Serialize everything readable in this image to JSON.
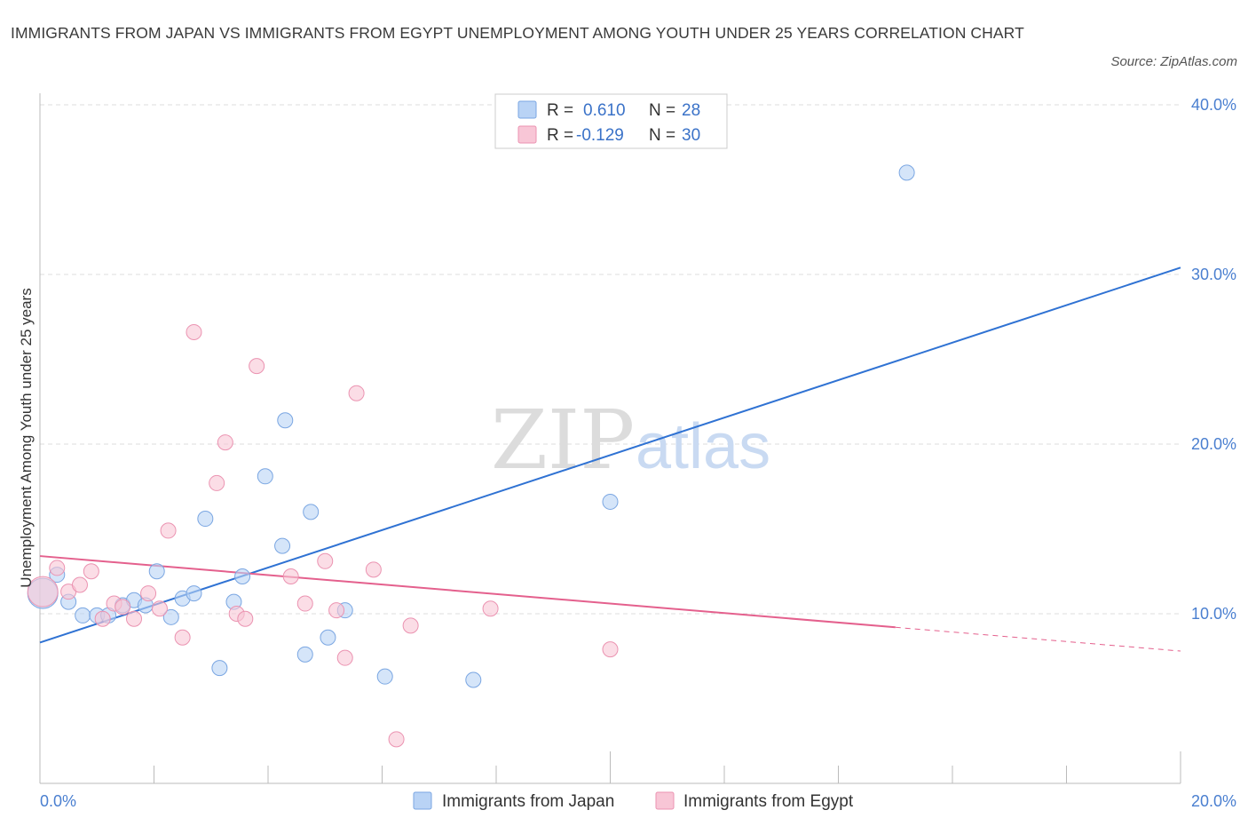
{
  "title": "IMMIGRANTS FROM JAPAN VS IMMIGRANTS FROM EGYPT UNEMPLOYMENT AMONG YOUTH UNDER 25 YEARS CORRELATION CHART",
  "source": "Source: ZipAtlas.com",
  "colors": {
    "japan_fill": "#b9d3f5",
    "japan_stroke": "#7aa6e2",
    "japan_line": "#2f72d3",
    "egypt_fill": "#f8c6d6",
    "egypt_stroke": "#eb93b1",
    "egypt_line": "#e4608d",
    "grid": "#dddddd",
    "axis_label": "#4a7fd0"
  },
  "legend": {
    "r_label": "R =",
    "n_label": "N =",
    "japan": {
      "r": "0.610",
      "n": "28"
    },
    "egypt": {
      "r": "-0.129",
      "n": "30"
    }
  },
  "watermark": {
    "zip": "ZIP",
    "atlas": "atlas"
  },
  "chart_data": {
    "type": "scatter",
    "title": "IMMIGRANTS FROM JAPAN VS IMMIGRANTS FROM EGYPT UNEMPLOYMENT AMONG YOUTH UNDER 25 YEARS CORRELATION CHART",
    "xlabel": "",
    "ylabel": "Unemployment Among Youth under 25 years",
    "xlim": [
      0,
      20
    ],
    "ylim": [
      0,
      40
    ],
    "x_tick_labels": [
      "0.0%",
      "20.0%"
    ],
    "y_tick_labels": [
      "10.0%",
      "20.0%",
      "30.0%",
      "40.0%"
    ],
    "y_ticks": [
      10,
      20,
      30,
      40
    ],
    "grid": true,
    "legend_position": "bottom-center",
    "series": [
      {
        "name": "Immigrants from Japan",
        "r": 0.61,
        "n": 28,
        "points": [
          {
            "x": 0.05,
            "y": 11.2,
            "big": true
          },
          {
            "x": 0.3,
            "y": 12.3
          },
          {
            "x": 0.5,
            "y": 10.7
          },
          {
            "x": 0.75,
            "y": 9.9
          },
          {
            "x": 1.0,
            "y": 9.9
          },
          {
            "x": 1.2,
            "y": 9.9
          },
          {
            "x": 1.45,
            "y": 10.5
          },
          {
            "x": 1.65,
            "y": 10.8
          },
          {
            "x": 1.85,
            "y": 10.5
          },
          {
            "x": 2.05,
            "y": 12.5
          },
          {
            "x": 2.3,
            "y": 9.8
          },
          {
            "x": 2.5,
            "y": 10.9
          },
          {
            "x": 2.7,
            "y": 11.2
          },
          {
            "x": 2.9,
            "y": 15.6
          },
          {
            "x": 3.15,
            "y": 6.8
          },
          {
            "x": 3.4,
            "y": 10.7
          },
          {
            "x": 3.55,
            "y": 12.2
          },
          {
            "x": 3.95,
            "y": 18.1
          },
          {
            "x": 4.25,
            "y": 14.0
          },
          {
            "x": 4.3,
            "y": 21.4
          },
          {
            "x": 4.65,
            "y": 7.6
          },
          {
            "x": 4.75,
            "y": 16.0
          },
          {
            "x": 5.05,
            "y": 8.6
          },
          {
            "x": 5.35,
            "y": 10.2
          },
          {
            "x": 6.05,
            "y": 6.3
          },
          {
            "x": 7.6,
            "y": 6.1
          },
          {
            "x": 10.0,
            "y": 16.6
          },
          {
            "x": 15.2,
            "y": 36.0
          }
        ],
        "trend": {
          "x": [
            0,
            20
          ],
          "y": [
            8.3,
            30.4
          ]
        }
      },
      {
        "name": "Immigrants from Egypt",
        "r": -0.129,
        "n": 30,
        "points": [
          {
            "x": 0.05,
            "y": 11.3,
            "big": true
          },
          {
            "x": 0.3,
            "y": 12.7
          },
          {
            "x": 0.5,
            "y": 11.3
          },
          {
            "x": 0.7,
            "y": 11.7
          },
          {
            "x": 0.9,
            "y": 12.5
          },
          {
            "x": 1.1,
            "y": 9.7
          },
          {
            "x": 1.3,
            "y": 10.6
          },
          {
            "x": 1.45,
            "y": 10.4
          },
          {
            "x": 1.65,
            "y": 9.7
          },
          {
            "x": 1.9,
            "y": 11.2
          },
          {
            "x": 2.1,
            "y": 10.3
          },
          {
            "x": 2.25,
            "y": 14.9
          },
          {
            "x": 2.5,
            "y": 8.6
          },
          {
            "x": 2.7,
            "y": 26.6
          },
          {
            "x": 3.1,
            "y": 17.7
          },
          {
            "x": 3.25,
            "y": 20.1
          },
          {
            "x": 3.45,
            "y": 10.0
          },
          {
            "x": 3.6,
            "y": 9.7
          },
          {
            "x": 3.8,
            "y": 24.6
          },
          {
            "x": 4.4,
            "y": 12.2
          },
          {
            "x": 4.65,
            "y": 10.6
          },
          {
            "x": 5.0,
            "y": 13.1
          },
          {
            "x": 5.2,
            "y": 10.2
          },
          {
            "x": 5.35,
            "y": 7.4
          },
          {
            "x": 5.55,
            "y": 23.0
          },
          {
            "x": 5.85,
            "y": 12.6
          },
          {
            "x": 6.25,
            "y": 2.6
          },
          {
            "x": 6.5,
            "y": 9.3
          },
          {
            "x": 7.9,
            "y": 10.3
          },
          {
            "x": 10.0,
            "y": 7.9
          }
        ],
        "trend": {
          "x": [
            0,
            15
          ],
          "y": [
            13.4,
            9.2
          ]
        },
        "trend_dashed": {
          "x": [
            15,
            20
          ],
          "y": [
            9.2,
            7.8
          ]
        }
      }
    ]
  }
}
